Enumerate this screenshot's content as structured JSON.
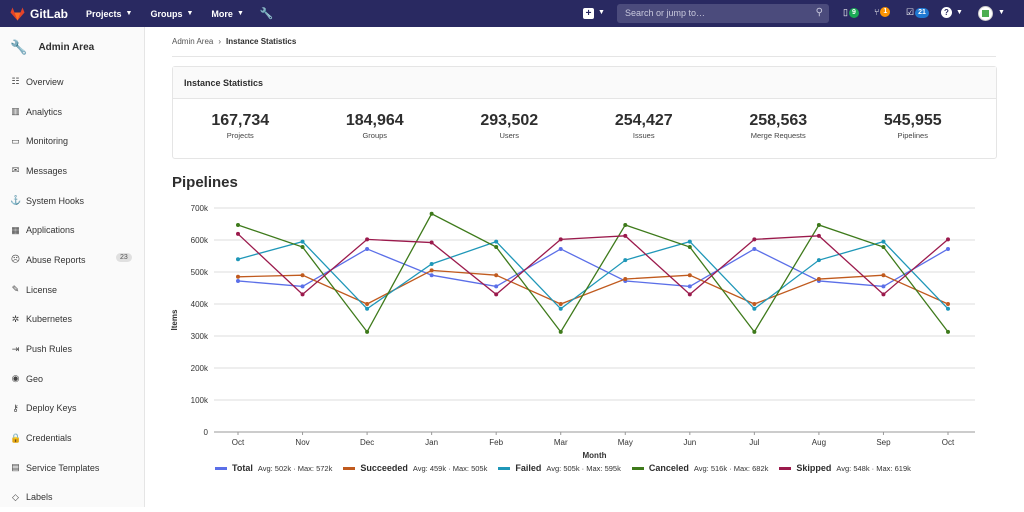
{
  "topbar": {
    "app_name": "GitLab",
    "nav": [
      "Projects",
      "Groups",
      "More"
    ],
    "search_placeholder": "Search or jump to…",
    "issues_badge": "9",
    "mr_badge": "1",
    "todos_badge": "21",
    "colors": {
      "bg": "#292961",
      "issues": "#1aaa55",
      "mr": "#fc9403",
      "todos": "#1f78d1"
    }
  },
  "sidebar": {
    "title": "Admin Area",
    "items": [
      {
        "label": "Overview",
        "icon": "overview-icon",
        "glyph": "☷"
      },
      {
        "label": "Analytics",
        "icon": "analytics-icon",
        "glyph": "▥"
      },
      {
        "label": "Monitoring",
        "icon": "monitoring-icon",
        "glyph": "▭"
      },
      {
        "label": "Messages",
        "icon": "messages-icon",
        "glyph": "✉"
      },
      {
        "label": "System Hooks",
        "icon": "hooks-icon",
        "glyph": "⚓"
      },
      {
        "label": "Applications",
        "icon": "applications-icon",
        "glyph": "▦"
      },
      {
        "label": "Abuse Reports",
        "icon": "abuse-icon",
        "glyph": "☹",
        "count": "23"
      },
      {
        "label": "License",
        "icon": "license-icon",
        "glyph": "✎"
      },
      {
        "label": "Kubernetes",
        "icon": "kubernetes-icon",
        "glyph": "✲"
      },
      {
        "label": "Push Rules",
        "icon": "push-rules-icon",
        "glyph": "⇥"
      },
      {
        "label": "Geo",
        "icon": "geo-icon",
        "glyph": "◉"
      },
      {
        "label": "Deploy Keys",
        "icon": "key-icon",
        "glyph": "⚷"
      },
      {
        "label": "Credentials",
        "icon": "lock-icon",
        "glyph": "🔒"
      },
      {
        "label": "Service Templates",
        "icon": "templates-icon",
        "glyph": "▤"
      },
      {
        "label": "Labels",
        "icon": "labels-icon",
        "glyph": "◇"
      }
    ]
  },
  "breadcrumb": {
    "parent": "Admin Area",
    "current": "Instance Statistics"
  },
  "stats_card": {
    "title": "Instance Statistics",
    "items": [
      {
        "value": "167,734",
        "label": "Projects"
      },
      {
        "value": "184,964",
        "label": "Groups"
      },
      {
        "value": "293,502",
        "label": "Users"
      },
      {
        "value": "254,427",
        "label": "Issues"
      },
      {
        "value": "258,563",
        "label": "Merge Requests"
      },
      {
        "value": "545,955",
        "label": "Pipelines"
      }
    ]
  },
  "chart_section_title": "Pipelines",
  "chart_data": {
    "type": "line",
    "title": "Pipelines",
    "xlabel": "Month",
    "ylabel": "Items",
    "categories": [
      "Oct",
      "Nov",
      "Dec",
      "Jan",
      "Feb",
      "Mar",
      "May",
      "Jun",
      "Jul",
      "Aug",
      "Sep",
      "Oct"
    ],
    "ylim": [
      0,
      700000
    ],
    "yticks": [
      "0",
      "100k",
      "200k",
      "300k",
      "400k",
      "500k",
      "600k",
      "700k"
    ],
    "grid": true,
    "legend_position": "bottom",
    "series": [
      {
        "name": "Total",
        "color": "#5b6fe8",
        "stats": "Avg: 502k · Max: 572k",
        "values": [
          472000,
          455000,
          572000,
          490000,
          455000,
          572000,
          472000,
          455000,
          572000,
          472000,
          455000,
          572000
        ]
      },
      {
        "name": "Succeeded",
        "color": "#c05a1e",
        "stats": "Avg: 459k · Max: 505k",
        "values": [
          485000,
          490000,
          400000,
          505000,
          490000,
          400000,
          478000,
          490000,
          400000,
          478000,
          490000,
          400000
        ]
      },
      {
        "name": "Failed",
        "color": "#1f97b8",
        "stats": "Avg: 505k · Max: 595k",
        "values": [
          540000,
          595000,
          385000,
          525000,
          595000,
          385000,
          537000,
          595000,
          385000,
          537000,
          595000,
          385000
        ]
      },
      {
        "name": "Canceled",
        "color": "#3e7a1b",
        "stats": "Avg: 516k · Max: 682k",
        "values": [
          647000,
          578000,
          313000,
          682000,
          578000,
          313000,
          647000,
          578000,
          313000,
          647000,
          578000,
          313000
        ]
      },
      {
        "name": "Skipped",
        "color": "#9b1a4c",
        "stats": "Avg: 548k · Max: 619k",
        "values": [
          619000,
          430000,
          602000,
          592000,
          430000,
          602000,
          613000,
          430000,
          602000,
          613000,
          430000,
          602000
        ]
      }
    ]
  }
}
